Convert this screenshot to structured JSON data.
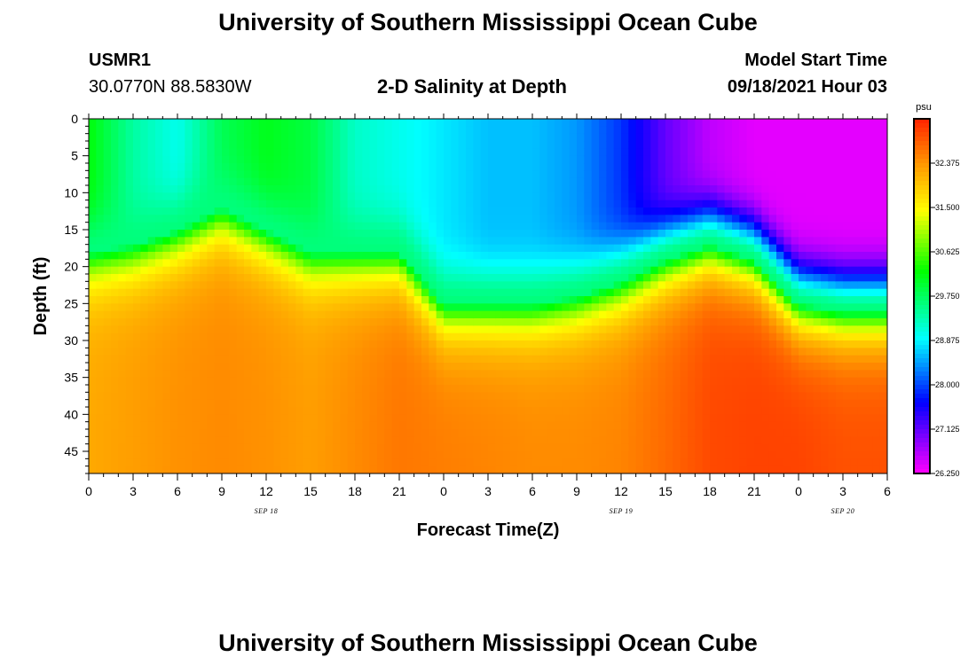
{
  "title_top": "University of Southern Mississippi Ocean Cube",
  "title_bottom": "University of Southern Mississippi Ocean Cube",
  "station": {
    "id": "USMR1",
    "coords": "30.0770N  88.5830W"
  },
  "model": {
    "label": "Model Start Time",
    "datetime": "09/18/2021 Hour 03"
  },
  "colors": {
    "magenta": "#ff00ff",
    "blue": "#0000ff",
    "cyan": "#00ffff",
    "green": "#00ff00",
    "yellow": "#ffff00",
    "orange": "#ff9900",
    "red": "#ff2200"
  },
  "chart_data": {
    "type": "heatmap",
    "title": "2-D Salinity at Depth",
    "xlabel": "Forecast Time(Z)",
    "ylabel": "Depth (ft)",
    "units": "psu",
    "x_tick_labels": [
      "0",
      "3",
      "6",
      "9",
      "12",
      "15",
      "18",
      "21",
      "0",
      "3",
      "6",
      "9",
      "12",
      "15",
      "18",
      "21",
      "0",
      "3",
      "6"
    ],
    "x_range_hours": [
      0,
      54
    ],
    "date_labels": [
      {
        "label": "SEP 18",
        "hour": 12
      },
      {
        "label": "SEP 19",
        "hour": 36
      },
      {
        "label": "SEP 20",
        "hour": 51
      }
    ],
    "y_ticks": [
      0,
      5,
      10,
      15,
      20,
      25,
      30,
      35,
      40,
      45
    ],
    "y_range_ft": [
      0,
      48
    ],
    "colorbar": {
      "min": 26.25,
      "max": 33.25,
      "labels": [
        "32.375",
        "31.500",
        "30.625",
        "29.750",
        "28.875",
        "28.000",
        "27.125",
        "26.250"
      ]
    },
    "hours": [
      0,
      3,
      6,
      9,
      12,
      15,
      18,
      21,
      24,
      27,
      30,
      33,
      36,
      39,
      42,
      45,
      48,
      51,
      54
    ],
    "halocline_depth_ft": [
      18,
      17,
      15,
      12,
      15,
      18,
      18,
      18,
      25,
      25,
      25,
      24,
      22,
      19,
      17,
      19,
      25,
      26,
      26
    ],
    "surface_salinity_psu": [
      30.2,
      29.4,
      29.0,
      29.8,
      30.1,
      29.9,
      29.2,
      29.0,
      28.8,
      28.6,
      28.6,
      28.4,
      27.9,
      27.1,
      26.6,
      26.4,
      26.4,
      26.4,
      26.4
    ],
    "deep_salinity_psu": [
      32.2,
      32.3,
      32.4,
      32.45,
      32.4,
      32.3,
      32.45,
      32.6,
      32.55,
      32.5,
      32.45,
      32.45,
      32.5,
      32.7,
      32.95,
      33.0,
      33.0,
      32.9,
      32.9
    ]
  }
}
